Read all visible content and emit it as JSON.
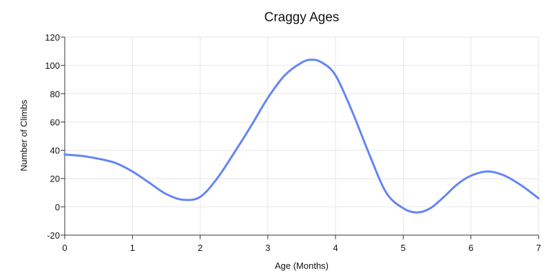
{
  "chart_data": {
    "type": "line",
    "title": "Craggy Ages",
    "xlabel": "Age (Months)",
    "ylabel": "Number of Climbs",
    "xlim": [
      0,
      7
    ],
    "ylim": [
      -20,
      120
    ],
    "x_ticks": [
      0,
      1,
      2,
      3,
      4,
      5,
      6,
      7
    ],
    "y_ticks": [
      -20,
      0,
      20,
      40,
      60,
      80,
      100,
      120
    ],
    "grid": true,
    "legend": false,
    "series": [
      {
        "color": "#6384f7",
        "x": [
          0,
          0.25,
          0.5,
          0.75,
          1,
          1.25,
          1.5,
          1.75,
          2,
          2.25,
          2.5,
          2.75,
          3,
          3.25,
          3.5,
          3.65,
          3.8,
          4,
          4.25,
          4.5,
          4.75,
          5,
          5.2,
          5.4,
          5.6,
          5.8,
          6,
          6.25,
          6.5,
          6.75,
          7
        ],
        "y": [
          37,
          36,
          34,
          31,
          25,
          17,
          9,
          5,
          7,
          20,
          38,
          57,
          77,
          93,
          102,
          104,
          102,
          93,
          67,
          37,
          10,
          -1,
          -4,
          -1,
          7,
          16,
          22,
          25,
          22,
          15,
          6
        ]
      }
    ]
  }
}
